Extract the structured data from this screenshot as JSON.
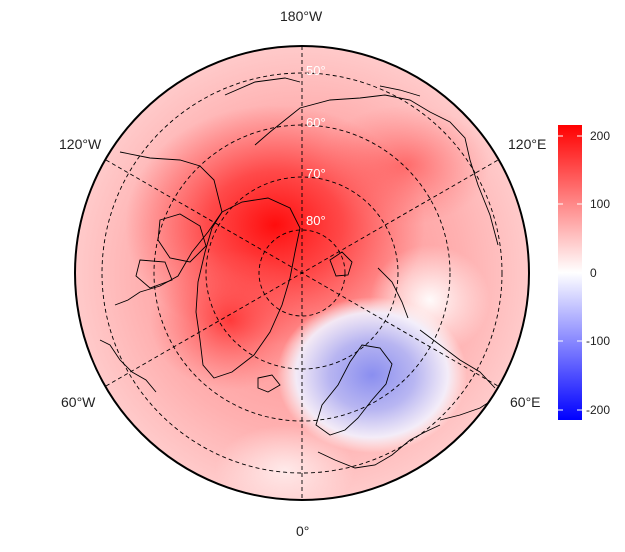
{
  "map": {
    "projection": "north polar stereographic",
    "center": "North Pole",
    "longitude_labels": {
      "top": "180°W",
      "upper_left": "120°W",
      "upper_right": "120°E",
      "lower_left": "60°W",
      "lower_right": "60°E",
      "bottom": "0°"
    },
    "latitude_labels": [
      "50°",
      "60°",
      "70°",
      "80°"
    ],
    "gridlines": "dashed",
    "coastlines": true,
    "country_borders": true,
    "field_anomalies": [
      {
        "region": "Arctic Ocean / Canadian Arctic / Greenland",
        "sign": "positive",
        "peak_value": 200
      },
      {
        "region": "Scandinavia / Barents Sea",
        "sign": "negative",
        "peak_value": -70
      }
    ]
  },
  "colorbar": {
    "ticks": [
      "200",
      "100",
      "0",
      "-100",
      "-200"
    ],
    "range": [
      -215,
      215
    ],
    "colors": {
      "low": "#0000ff",
      "mid": "#ffffff",
      "high": "#ff0000"
    }
  },
  "colors": {
    "background": "#ffffff",
    "outline": "#000000",
    "land_lines": "#000000"
  }
}
